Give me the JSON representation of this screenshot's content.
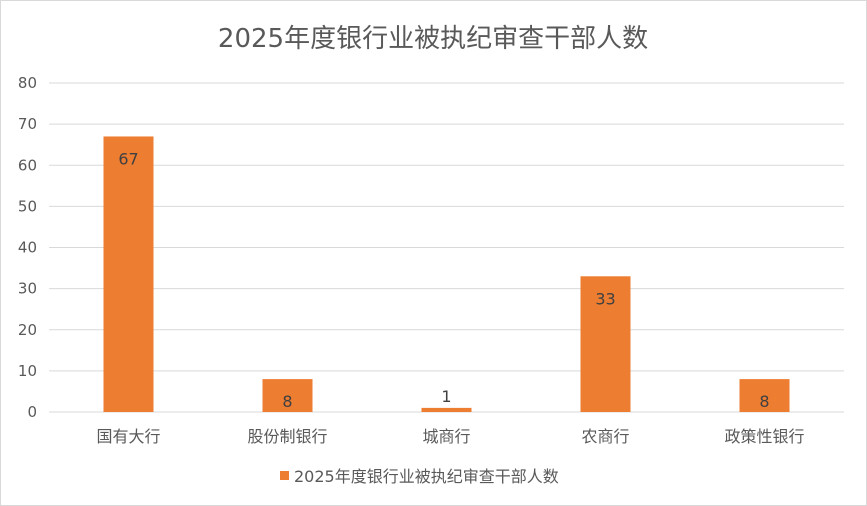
{
  "chart_data": {
    "type": "bar",
    "title": "2025年度银行业被执纪审查干部人数",
    "categories": [
      "国有大行",
      "股份制银行",
      "城商行",
      "农商行",
      "政策性银行"
    ],
    "series": [
      {
        "name": "2025年度银行业被执纪审查干部人数",
        "values": [
          67,
          8,
          1,
          33,
          8
        ],
        "color": "#ED7D31"
      }
    ],
    "data_labels": [
      "67",
      "8",
      "1",
      "33",
      "8"
    ],
    "xlabel": "",
    "ylabel": "",
    "ylim": [
      0,
      80
    ],
    "yticks": [
      0,
      10,
      20,
      30,
      40,
      50,
      60,
      70,
      80
    ],
    "grid": true,
    "gridline_color": "#d9d9d9",
    "legend": "bottom"
  }
}
